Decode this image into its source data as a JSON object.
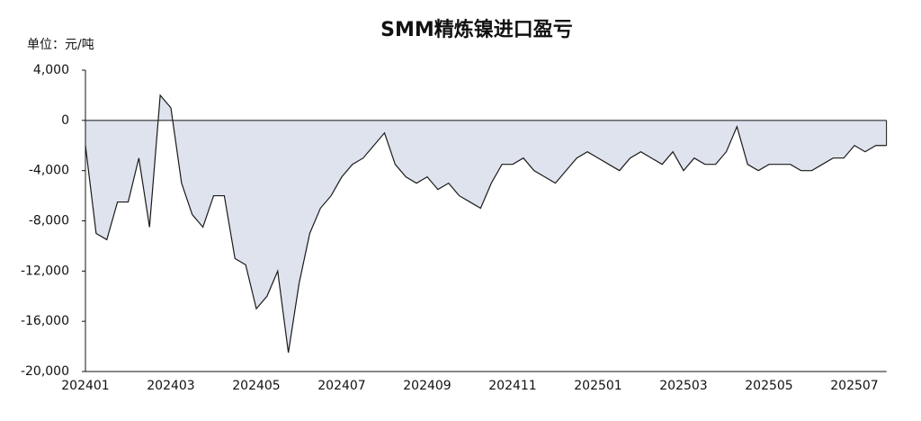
{
  "chart_data": {
    "type": "area",
    "title": "SMM精炼镍进口盈亏",
    "unit_label": "单位：元/吨",
    "categories": [
      "202401",
      null,
      null,
      null,
      null,
      null,
      null,
      null,
      "202403",
      null,
      null,
      null,
      null,
      null,
      null,
      null,
      "202405",
      null,
      null,
      null,
      null,
      null,
      null,
      null,
      "202407",
      null,
      null,
      null,
      null,
      null,
      null,
      null,
      "202409",
      null,
      null,
      null,
      null,
      null,
      null,
      null,
      "202411",
      null,
      null,
      null,
      null,
      null,
      null,
      null,
      "202501",
      null,
      null,
      null,
      null,
      null,
      null,
      null,
      "202503",
      null,
      null,
      null,
      null,
      null,
      null,
      null,
      "202505",
      null,
      null,
      null,
      null,
      null,
      null,
      null,
      "202507",
      null,
      null,
      null
    ],
    "series": [
      {
        "color": "#1a1a1a",
        "fill": "#dfe3ee",
        "values": [
          -2000,
          -9000,
          -9500,
          -6500,
          -6500,
          -3000,
          -8500,
          2000,
          1000,
          -5000,
          -7500,
          -8500,
          -6000,
          -6000,
          -11000,
          -11500,
          -15000,
          -14000,
          -12000,
          -18500,
          -13000,
          -9000,
          -7000,
          -6000,
          -4500,
          -3500,
          -3000,
          -2000,
          -1000,
          -3500,
          -4500,
          -5000,
          -4500,
          -5500,
          -5000,
          -6000,
          -6500,
          -7000,
          -5000,
          -3500,
          -3500,
          -3000,
          -4000,
          -4500,
          -5000,
          -4000,
          -3000,
          -2500,
          -3000,
          -3500,
          -4000,
          -3000,
          -2500,
          -3000,
          -3500,
          -2500,
          -4000,
          -3000,
          -3500,
          -3500,
          -2500,
          -500,
          -3500,
          -4000,
          -3500,
          -3500,
          -3500,
          -4000,
          -4000,
          -3500,
          -3000,
          -3000,
          -2000,
          -2500,
          -2000,
          -2000
        ]
      }
    ],
    "ylim": [
      -20000,
      4000
    ],
    "yticks": [
      {
        "value": -20000,
        "label": "-20,000"
      },
      {
        "value": -16000,
        "label": "-16,000"
      },
      {
        "value": -12000,
        "label": "-12,000"
      },
      {
        "value": -8000,
        "label": "-8,000"
      },
      {
        "value": -4000,
        "label": "-4,000"
      },
      0,
      {
        "value": 4000,
        "label": "4,000"
      }
    ]
  }
}
